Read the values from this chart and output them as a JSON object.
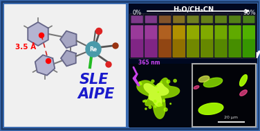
{
  "fig_width": 3.76,
  "fig_height": 1.89,
  "dpi": 100,
  "bg_color": "#1a3a6a",
  "left_panel_bg": "#f0f0f0",
  "right_panel_bg": "#050815",
  "border_color": "#3a6aaf",
  "title_text": "H₂O/CH₃CN",
  "left_label": "0%",
  "right_label": "90%",
  "distance_label": "3.5 Å",
  "sle_text": "SLE",
  "aipe_text": "AIPE",
  "nm_label": "365 nm",
  "scale_label": "20 μm",
  "tube_colors": [
    [
      "#7a2080",
      "#9a3a9a",
      "#c855d0"
    ],
    [
      "#7a2080",
      "#9a3a9a",
      "#c855d0"
    ],
    [
      "#8a4010",
      "#b06020",
      "#d08030"
    ],
    [
      "#8a6800",
      "#b09000",
      "#d0b020"
    ],
    [
      "#6a8000",
      "#90aa00",
      "#b0cc20"
    ],
    [
      "#608000",
      "#80aa00",
      "#a0cc10"
    ],
    [
      "#508000",
      "#70a800",
      "#90cc10"
    ],
    [
      "#408800",
      "#60aa00",
      "#80cc10"
    ],
    [
      "#309000",
      "#50b000",
      "#70cc10"
    ]
  ],
  "re_color": "#4a9aaa",
  "cl_color": "#22bb22",
  "co_red": "#dd2222",
  "co_dark": "#993311",
  "pi_color": "#cc2222",
  "bond_color": "#777777",
  "ring_fill": "#9999bb",
  "ring_edge": "#666688",
  "triazole_fill": "#9999cc",
  "lightning_color": "#cc44ee",
  "crystal_green": "#aaff00",
  "crystal_yellow": "#ccdd44",
  "crystal_pink": "#ee4488",
  "glow_outer": "#88cc00",
  "glow_inner": "#ccff33",
  "arrow_white": "#ffffff",
  "scale_white": "#dddddd",
  "tube_bg": "#000820"
}
